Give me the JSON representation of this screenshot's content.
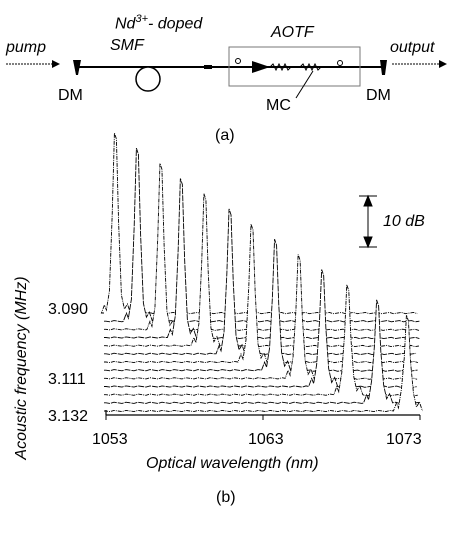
{
  "diagram": {
    "pump": "pump",
    "fiber_line1_pre": "Nd",
    "fiber_line1_sup": "3+",
    "fiber_line1_post": "- doped",
    "fiber_line2": "SMF",
    "aotf": "AOTF",
    "output": "output",
    "dm_left": "DM",
    "dm_right": "DM",
    "mc": "MC",
    "caption": "(a)"
  },
  "plot": {
    "scale_bar": "10 dB",
    "caption": "(b)"
  },
  "chart_data": {
    "type": "line",
    "title": "",
    "xlabel": "Optical wavelength (nm)",
    "ylabel": "Acoustic frequency (MHz)",
    "x_ticks": [
      "1053",
      "1063",
      "1073"
    ],
    "y_ticks": [
      "3.090",
      "3.111",
      "3.132"
    ],
    "xlim": [
      1053,
      1073
    ],
    "ylim": [
      3.09,
      3.132
    ],
    "traces": [
      {
        "acoustic_freq": 3.09,
        "peak_wavelength": 1053.6
      },
      {
        "acoustic_freq": 3.0935,
        "peak_wavelength": 1055.0
      },
      {
        "acoustic_freq": 3.097,
        "peak_wavelength": 1056.5
      },
      {
        "acoustic_freq": 3.1005,
        "peak_wavelength": 1057.8
      },
      {
        "acoustic_freq": 3.104,
        "peak_wavelength": 1059.3
      },
      {
        "acoustic_freq": 3.1075,
        "peak_wavelength": 1060.9
      },
      {
        "acoustic_freq": 3.111,
        "peak_wavelength": 1062.3
      },
      {
        "acoustic_freq": 3.1145,
        "peak_wavelength": 1063.8
      },
      {
        "acoustic_freq": 3.118,
        "peak_wavelength": 1065.3
      },
      {
        "acoustic_freq": 3.1215,
        "peak_wavelength": 1066.8
      },
      {
        "acoustic_freq": 3.125,
        "peak_wavelength": 1068.4
      },
      {
        "acoustic_freq": 3.1285,
        "peak_wavelength": 1070.3
      },
      {
        "acoustic_freq": 3.132,
        "peak_wavelength": 1072.2
      }
    ],
    "scale_bar_db": 10
  }
}
